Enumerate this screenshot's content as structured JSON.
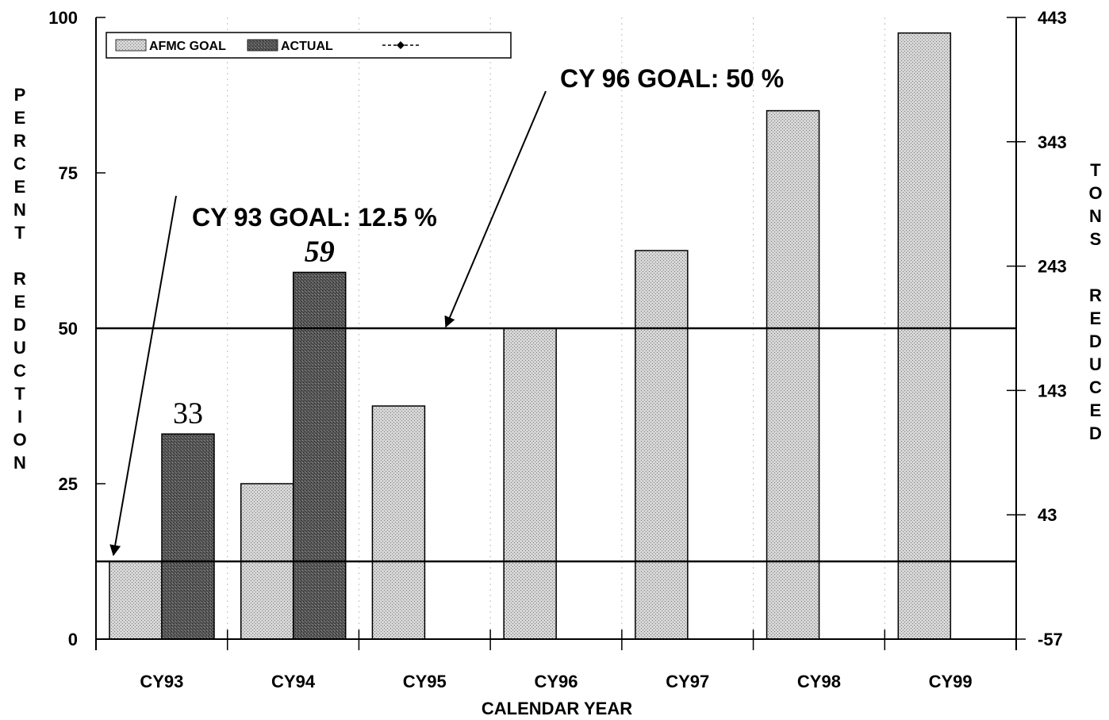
{
  "chart_data": {
    "type": "bar",
    "xlabel": "CALENDAR YEAR",
    "ylabel": "PERCENT REDUCTION",
    "y2label": "TONS REDUCED",
    "categories": [
      "CY93",
      "CY94",
      "CY95",
      "CY96",
      "CY97",
      "CY98",
      "CY99"
    ],
    "series": [
      {
        "name": "AFMC GOAL",
        "values": [
          12.5,
          25,
          37.5,
          50,
          62.5,
          85,
          97.5
        ]
      },
      {
        "name": "ACTUAL",
        "values": [
          33,
          59,
          null,
          null,
          null,
          null,
          null
        ]
      }
    ],
    "legend_extra_entry": "",
    "ylim": [
      0,
      100
    ],
    "yticks": [
      0,
      25,
      50,
      75,
      100
    ],
    "y2lim": [
      -57,
      443
    ],
    "y2ticks": [
      -57,
      43,
      143,
      243,
      343,
      443
    ],
    "reference_lines": [
      12.5,
      50
    ],
    "data_labels": [
      "33",
      "59"
    ],
    "annotations": [
      "CY 93 GOAL: 12.5 %",
      "CY 96 GOAL: 50 %"
    ],
    "legend_position": "top-left",
    "colors": {
      "goal": "#c4c4c4",
      "actual": "#4a4a4a"
    }
  }
}
